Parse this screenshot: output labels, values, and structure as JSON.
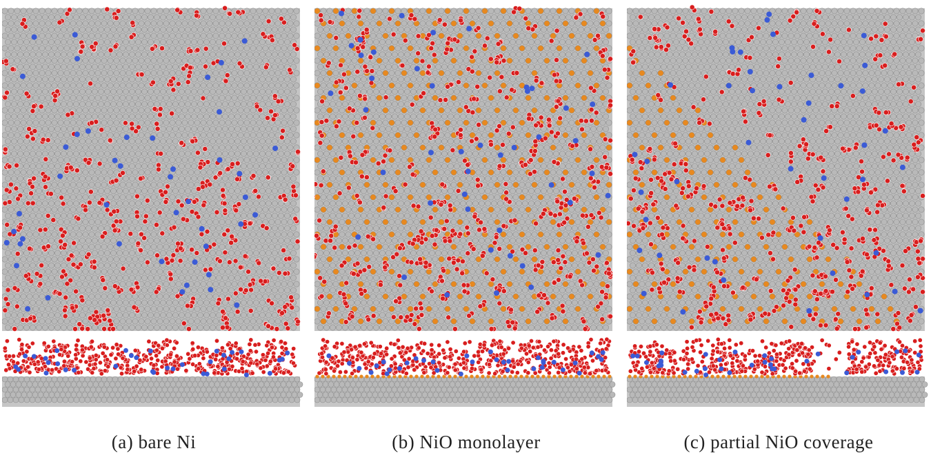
{
  "panels": [
    {
      "caption": "(a) bare Ni",
      "variant": "bare"
    },
    {
      "caption": "(b) NiO monolayer",
      "variant": "monolayer"
    },
    {
      "caption": "(c) partial NiO coverage",
      "variant": "partial"
    }
  ],
  "colors": {
    "ni_atom": "#b9b9b9",
    "ni_shadow": "#8c8c8c",
    "oxygen_ni_oxide": "#e8891f",
    "red_species": "#d81e1e",
    "blue_species": "#3b5bd6",
    "background": "#ffffff"
  }
}
